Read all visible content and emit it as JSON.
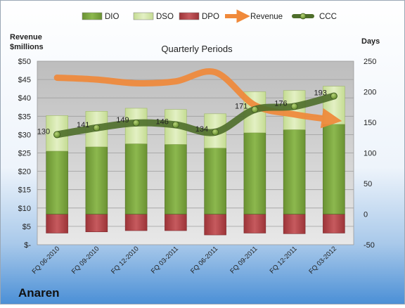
{
  "chart_data": {
    "type": "bar",
    "title": "Quarterly Periods",
    "company": "Anaren",
    "left_axis_title": [
      "Revenue",
      "$millions"
    ],
    "right_axis_title": "Days",
    "left_axis": {
      "min": 0,
      "max": 50,
      "step": 5,
      "tick_labels": [
        "$-",
        "$5",
        "$10",
        "$15",
        "$20",
        "$25",
        "$30",
        "$35",
        "$40",
        "$45",
        "$50"
      ]
    },
    "right_axis": {
      "min": -50,
      "max": 250,
      "step": 50,
      "tick_labels": [
        "-50",
        "0",
        "50",
        "100",
        "150",
        "200",
        "250"
      ]
    },
    "categories": [
      "FQ 06-2010",
      "FQ 09-2010",
      "FQ 12-2010",
      "FQ 03-2011",
      "FQ 06-2011",
      "FQ 09-2011",
      "FQ 12-2011",
      "FQ 03-2012"
    ],
    "legend": {
      "position": "top",
      "entries": [
        "DIO",
        "DSO",
        "DPO",
        "Revenue",
        "CCC"
      ]
    },
    "series": [
      {
        "name": "DIO",
        "axis": "right",
        "type": "stacked-bar",
        "values": [
          103,
          110,
          115,
          114,
          108,
          133,
          138,
          147
        ]
      },
      {
        "name": "DSO",
        "axis": "right",
        "type": "stacked-bar",
        "values": [
          58,
          58,
          58,
          57,
          56,
          67,
          64,
          62
        ]
      },
      {
        "name": "DPO",
        "axis": "right",
        "type": "bar",
        "values": [
          -31,
          -29,
          -27,
          -27,
          -34,
          -31,
          -32,
          -31
        ]
      },
      {
        "name": "Revenue",
        "axis": "left",
        "type": "line",
        "values": [
          45.5,
          45,
          44,
          44.5,
          47,
          38,
          35.5,
          34
        ]
      },
      {
        "name": "CCC",
        "axis": "right",
        "type": "line",
        "values": [
          130,
          141,
          149,
          146,
          134,
          171,
          176,
          193
        ]
      }
    ],
    "colors": {
      "DIO": "#7ba043",
      "DSO": "#d4e6a8",
      "DPO": "#b3454a",
      "Revenue": "#f0893a",
      "CCC": "#5a7a32",
      "background_top": "#ffffff",
      "background_bottom": "#5b9bd5",
      "plot_area": "#d4d4d4"
    },
    "grid": true
  }
}
